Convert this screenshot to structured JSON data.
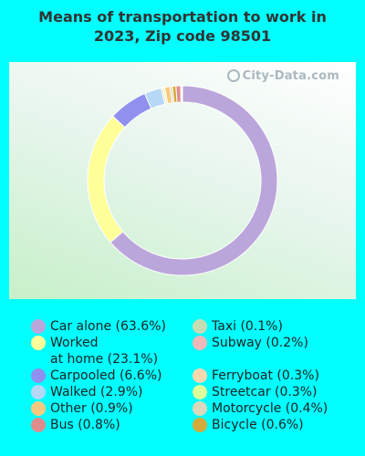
{
  "title_line1": "Means of transportation to work in",
  "title_line2": "2023, Zip code 98501",
  "watermark": "City-Data.com",
  "chart_data": {
    "type": "pie",
    "donut": true,
    "title": "Means of transportation to work in 2023, Zip code 98501",
    "slices": [
      {
        "label": "Car alone (63.6%)",
        "value": 63.6,
        "color": "#BBA6DB"
      },
      {
        "label": "Worked at home (23.1%)",
        "label_lines": [
          "Worked",
          "at home (23.1%)"
        ],
        "value": 23.1,
        "color": "#FFFF99"
      },
      {
        "label": "Carpooled (6.6%)",
        "value": 6.6,
        "color": "#9090EE"
      },
      {
        "label": "Walked (2.9%)",
        "value": 2.9,
        "color": "#B4D8F6"
      },
      {
        "label": "Other (0.9%)",
        "value": 0.9,
        "color": "#F8CA80"
      },
      {
        "label": "Bus (0.8%)",
        "value": 0.8,
        "color": "#E08C8C"
      },
      {
        "label": "Taxi (0.1%)",
        "value": 0.1,
        "color": "#C6DDB3"
      },
      {
        "label": "Subway (0.2%)",
        "value": 0.2,
        "color": "#EFB8B8"
      },
      {
        "label": "Ferryboat (0.3%)",
        "value": 0.3,
        "color": "#FDD9B0"
      },
      {
        "label": "Streetcar (0.3%)",
        "value": 0.3,
        "color": "#DDFF99"
      },
      {
        "label": "Motorcycle (0.4%)",
        "value": 0.4,
        "color": "#DCD8BC"
      },
      {
        "label": "Bicycle (0.6%)",
        "value": 0.6,
        "color": "#D4AA3A"
      }
    ],
    "legend_placement": "bottom"
  }
}
